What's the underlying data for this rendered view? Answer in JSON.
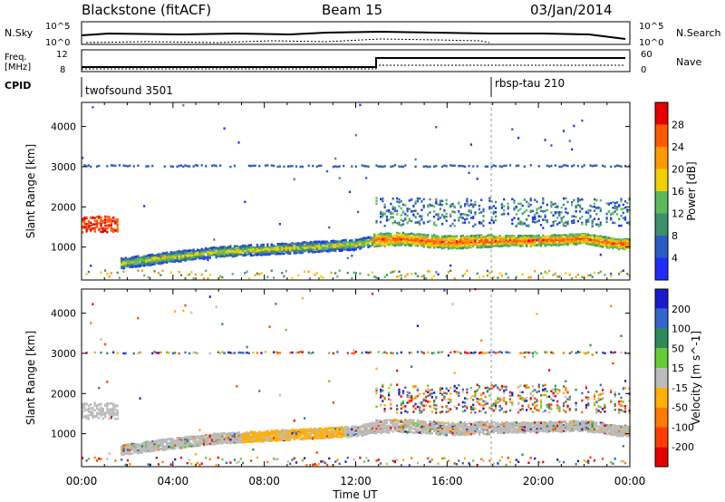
{
  "header": {
    "station": "Blackstone (fitACF)",
    "beam": "Beam 15",
    "date": "03/Jan/2014"
  },
  "summary_panels": {
    "nsky_label": "N.Sky",
    "nsearch_label": "N.Search",
    "noise_ticks": [
      "10^5",
      "10^0"
    ],
    "freq_label_top": "Freq.",
    "freq_label_bottom": "[MHz]",
    "freq_ticks": [
      "12",
      "8"
    ],
    "nave_label": "Nave",
    "nave_ticks": [
      "60",
      "0"
    ],
    "cpid_label": "CPID",
    "cpid_segments": [
      {
        "name": "twofsound 3501",
        "start_hour": 0
      },
      {
        "name": "rbsp-tau 210",
        "start_hour": 18
      }
    ]
  },
  "chart_data": [
    {
      "type": "heatmap",
      "title": "",
      "xlabel": "Time UT",
      "ylabel": "Slant Range [km]",
      "xlim": [
        0,
        24
      ],
      "ylim": [
        180,
        4600
      ],
      "x_tick_labels": [
        "00:00",
        "04:00",
        "08:00",
        "12:00",
        "16:00",
        "20:00",
        "00:00"
      ],
      "y_ticks": [
        1000,
        2000,
        3000,
        4000
      ],
      "colorbar": {
        "label": "Power [dB]",
        "ticks": [
          4,
          8,
          12,
          16,
          20,
          24,
          28
        ],
        "colors": [
          "#1f2cff",
          "#2b5cc4",
          "#3e8f6b",
          "#5cb85c",
          "#f0d000",
          "#ff9900",
          "#ff5a00",
          "#e60000"
        ]
      },
      "bands": [
        {
          "name": "main backscatter",
          "points": [
            [
              1.8,
              580
            ],
            [
              4,
              740
            ],
            [
              6,
              860
            ],
            [
              8,
              920
            ],
            [
              10,
              980
            ],
            [
              12,
              1040
            ],
            [
              13,
              1160
            ],
            [
              14,
              1180
            ],
            [
              16,
              1100
            ],
            [
              18,
              1130
            ],
            [
              20,
              1140
            ],
            [
              22,
              1180
            ],
            [
              23.5,
              1050
            ]
          ],
          "value": 20
        },
        {
          "name": "early echo",
          "points": [
            [
              0,
              1500
            ],
            [
              1.5,
              1500
            ]
          ],
          "value": 26
        },
        {
          "name": "3000 km band",
          "points": [
            [
              0,
              3000
            ],
            [
              24,
              3000
            ]
          ],
          "value": 6
        }
      ]
    },
    {
      "type": "heatmap",
      "title": "",
      "xlabel": "Time UT",
      "ylabel": "Slant Range [km]",
      "xlim": [
        0,
        24
      ],
      "ylim": [
        180,
        4600
      ],
      "x_tick_labels": [
        "00:00",
        "04:00",
        "08:00",
        "12:00",
        "16:00",
        "20:00",
        "00:00"
      ],
      "y_ticks": [
        1000,
        2000,
        3000,
        4000
      ],
      "colorbar": {
        "label": "Velocity [m s^-1]",
        "ticks": [
          200,
          100,
          50,
          15,
          -15,
          -50,
          -100,
          -200
        ],
        "colors": [
          "#1a1acc",
          "#3366cc",
          "#2e8b57",
          "#66cc33",
          "#bbbbbb",
          "#ffb000",
          "#ff7a00",
          "#ff3d00",
          "#e60000"
        ]
      }
    }
  ]
}
